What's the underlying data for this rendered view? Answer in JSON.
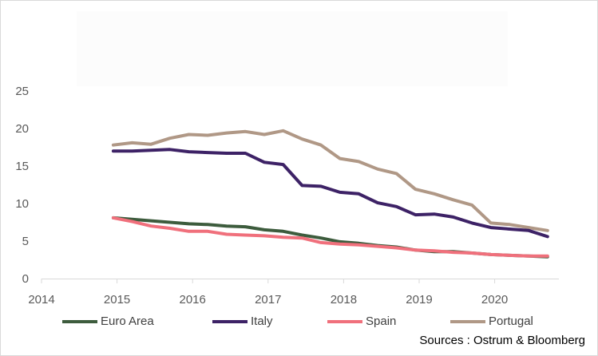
{
  "chart_data": {
    "type": "line",
    "title": "",
    "xlabel": "",
    "ylabel": "",
    "xlim": [
      2014,
      2020.85
    ],
    "ylim": [
      0,
      25
    ],
    "x_ticks": [
      "2014",
      "2015",
      "2016",
      "2017",
      "2018",
      "2019",
      "2020"
    ],
    "y_ticks": [
      "0",
      "5",
      "10",
      "15",
      "20",
      "25"
    ],
    "grid": false,
    "legend_position": "bottom",
    "series": [
      {
        "name": "Euro Area",
        "color": "#3d5c3d",
        "x": [
          2014.95,
          2015.2,
          2015.45,
          2015.7,
          2015.95,
          2016.2,
          2016.45,
          2016.7,
          2016.95,
          2017.2,
          2017.45,
          2017.7,
          2017.95,
          2018.2,
          2018.45,
          2018.7,
          2018.95,
          2019.2,
          2019.45,
          2019.7,
          2019.95,
          2020.2,
          2020.45,
          2020.7
        ],
        "y": [
          8.1,
          7.9,
          7.7,
          7.5,
          7.3,
          7.2,
          7.0,
          6.9,
          6.5,
          6.3,
          5.8,
          5.4,
          4.9,
          4.7,
          4.4,
          4.2,
          3.8,
          3.6,
          3.6,
          3.4,
          3.2,
          3.1,
          3.0,
          2.9
        ]
      },
      {
        "name": "Italy",
        "color": "#3d2266",
        "x": [
          2014.95,
          2015.2,
          2015.45,
          2015.7,
          2015.95,
          2016.2,
          2016.45,
          2016.7,
          2016.95,
          2017.2,
          2017.45,
          2017.7,
          2017.95,
          2018.2,
          2018.45,
          2018.7,
          2018.95,
          2019.2,
          2019.45,
          2019.7,
          2019.95,
          2020.2,
          2020.45,
          2020.7
        ],
        "y": [
          17.0,
          17.0,
          17.1,
          17.2,
          16.9,
          16.8,
          16.7,
          16.7,
          15.5,
          15.2,
          12.4,
          12.3,
          11.5,
          11.3,
          10.1,
          9.6,
          8.5,
          8.6,
          8.2,
          7.4,
          6.8,
          6.6,
          6.4,
          5.6
        ]
      },
      {
        "name": "Spain",
        "color": "#f0707c",
        "x": [
          2014.95,
          2015.2,
          2015.45,
          2015.7,
          2015.95,
          2016.2,
          2016.45,
          2016.7,
          2016.95,
          2017.2,
          2017.45,
          2017.7,
          2017.95,
          2018.2,
          2018.45,
          2018.7,
          2018.95,
          2019.2,
          2019.45,
          2019.7,
          2019.95,
          2020.2,
          2020.45,
          2020.7
        ],
        "y": [
          8.1,
          7.6,
          7.0,
          6.7,
          6.3,
          6.3,
          5.9,
          5.8,
          5.7,
          5.5,
          5.4,
          4.8,
          4.6,
          4.5,
          4.3,
          4.1,
          3.8,
          3.7,
          3.5,
          3.4,
          3.2,
          3.1,
          3.0,
          3.0
        ]
      },
      {
        "name": "Portugal",
        "color": "#b09886",
        "x": [
          2014.95,
          2015.2,
          2015.45,
          2015.7,
          2015.95,
          2016.2,
          2016.45,
          2016.7,
          2016.95,
          2017.2,
          2017.45,
          2017.7,
          2017.95,
          2018.2,
          2018.45,
          2018.7,
          2018.95,
          2019.2,
          2019.45,
          2019.7,
          2019.95,
          2020.2,
          2020.45,
          2020.7
        ],
        "y": [
          17.8,
          18.1,
          17.9,
          18.7,
          19.2,
          19.1,
          19.4,
          19.6,
          19.2,
          19.7,
          18.6,
          17.8,
          16.0,
          15.6,
          14.6,
          14.0,
          11.9,
          11.3,
          10.5,
          9.8,
          7.4,
          7.2,
          6.8,
          6.4
        ]
      }
    ],
    "source": "Sources : Ostrum & Bloomberg"
  }
}
